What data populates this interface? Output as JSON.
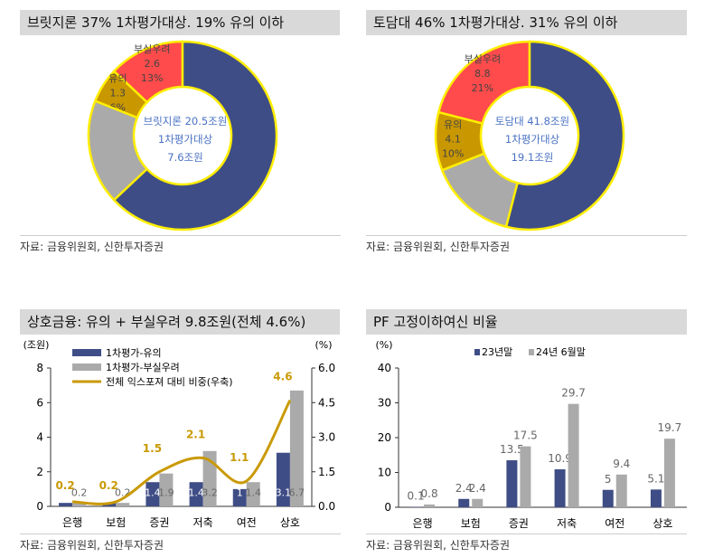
{
  "panels": [
    {
      "title": "브릿지론 37% 1차평가대상. 19% 유의 이하",
      "source": "자료: 금융위원회, 신한투자증권"
    },
    {
      "title": "토담대 46% 1차평가대상. 31% 유의 이하",
      "source": "자료: 금융위원회, 신한투자증권"
    },
    {
      "title": "상호금융: 유의 + 부실우려 9.8조원(전체 4.6%)",
      "source": "자료: 금융위원회, 신한투자증권"
    },
    {
      "title": "PF 고정이하여신 비율",
      "source": "자료: 금융위원회, 신한투자증권"
    }
  ],
  "chart_data": [
    {
      "type": "pie",
      "donut": true,
      "center_lines": [
        "브릿지론 20.5조원",
        "1차평가대상",
        "7.6조원"
      ],
      "slices": [
        {
          "label": "부실우려",
          "value_text": "2.6",
          "pct": 13,
          "color": "#ff4b4b"
        },
        {
          "label": "유의",
          "value_text": "1.3",
          "pct": 6,
          "color": "#c99700"
        },
        {
          "label": "",
          "pct": 18,
          "color": "#aaaaaa"
        },
        {
          "label": "",
          "pct": 63,
          "color": "#3f4d86"
        }
      ]
    },
    {
      "type": "pie",
      "donut": true,
      "center_lines": [
        "토담대 41.8조원",
        "1차평가대상",
        "19.1조원"
      ],
      "slices": [
        {
          "label": "부실우려",
          "value_text": "8.8",
          "pct": 21,
          "color": "#ff4b4b"
        },
        {
          "label": "유의",
          "value_text": "4.1",
          "pct": 10,
          "color": "#c99700"
        },
        {
          "label": "",
          "pct": 15,
          "color": "#aaaaaa"
        },
        {
          "label": "",
          "pct": 54,
          "color": "#3f4d86"
        }
      ]
    },
    {
      "type": "bar",
      "categories": [
        "은행",
        "보험",
        "증권",
        "저축",
        "여전",
        "상호"
      ],
      "ylabel": "(조원)",
      "y2label": "(%)",
      "ylim": [
        0,
        8
      ],
      "yticks": [
        0,
        2,
        4,
        6,
        8
      ],
      "y2lim": [
        0,
        6
      ],
      "y2ticks": [
        "0.0",
        "1.5",
        "3.0",
        "4.5",
        "6.0"
      ],
      "series": [
        {
          "name": "1차평가-유의",
          "color": "#3f4d86",
          "values": [
            0.2,
            0.2,
            1.4,
            1.4,
            1,
            3.1
          ],
          "labels": [
            "",
            "",
            "1.4",
            "1.4",
            "1",
            "3.1"
          ]
        },
        {
          "name": "1차평가-부실우려",
          "color": "#aaaaaa",
          "values": [
            0.2,
            0.2,
            1.9,
            3.2,
            1.4,
            6.7
          ],
          "labels": [
            "0.2",
            "0.2",
            "1.9",
            "3.2",
            "1.4",
            "6.7"
          ]
        },
        {
          "name": "전체 익스포져 대비 비중(우축)",
          "type": "line",
          "axis": "right",
          "color": "#c99a06",
          "values": [
            0.2,
            0.2,
            1.5,
            2.1,
            1.1,
            4.6
          ],
          "labels": [
            "0.2",
            "0.2",
            "1.5",
            "2.1",
            "1.1",
            "4.6"
          ]
        }
      ]
    },
    {
      "type": "bar",
      "categories": [
        "은행",
        "보험",
        "증권",
        "저축",
        "여전",
        "상호"
      ],
      "ylabel": "(%)",
      "ylim": [
        0,
        40
      ],
      "yticks": [
        0,
        10,
        20,
        30,
        40
      ],
      "series": [
        {
          "name": "23년말",
          "color": "#3f4d86",
          "values": [
            0.1,
            2.4,
            13.5,
            10.9,
            5,
            5.1
          ]
        },
        {
          "name": "24년 6월말",
          "color": "#aaaaaa",
          "values": [
            0.8,
            2.4,
            17.5,
            29.7,
            9.4,
            19.7
          ]
        }
      ]
    }
  ]
}
